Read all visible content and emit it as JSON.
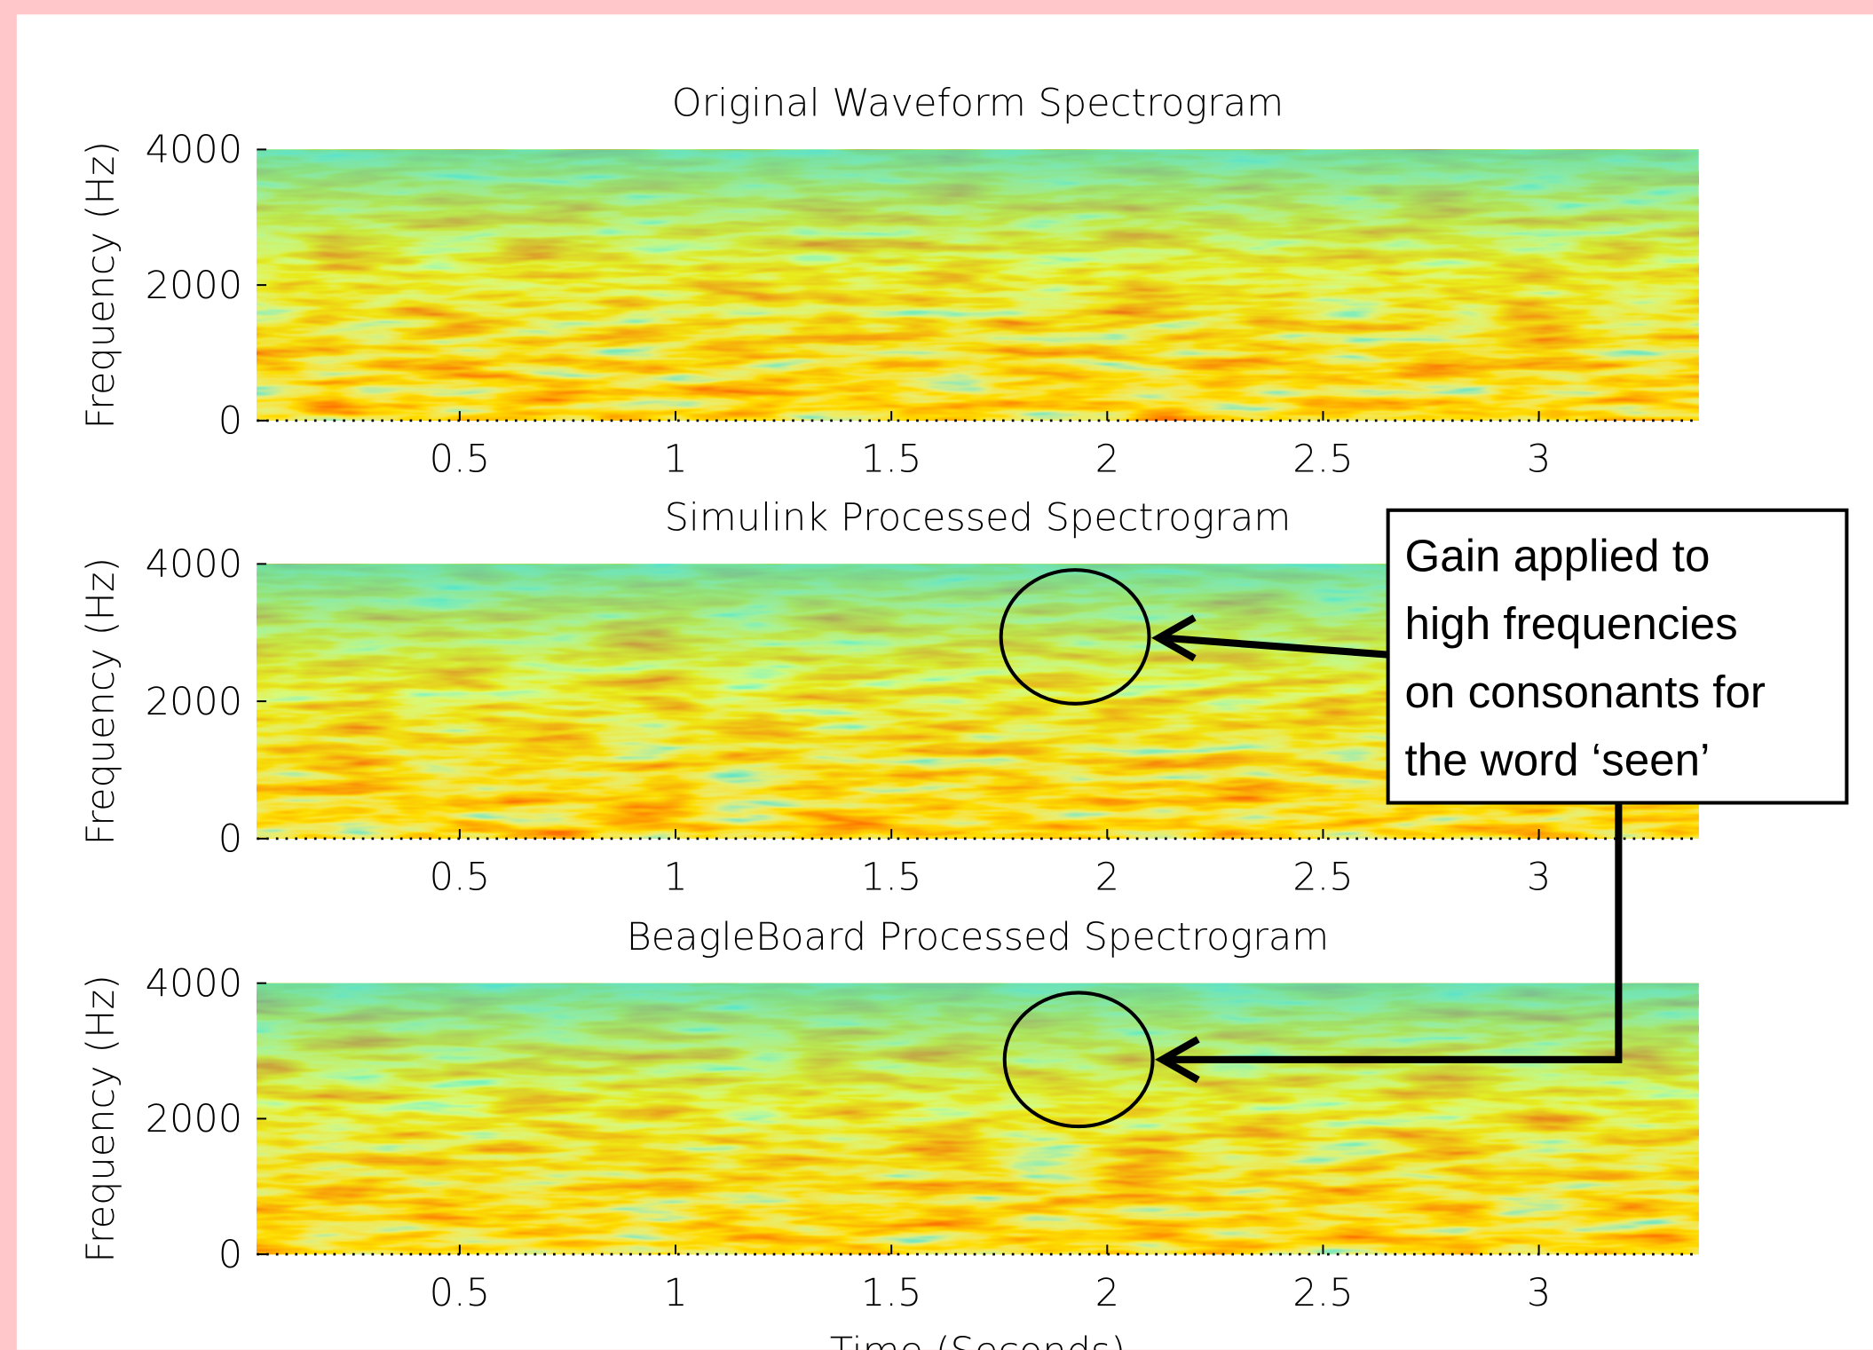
{
  "chart_data": [
    {
      "type": "spectrogram",
      "title": "Original Waveform Spectrogram",
      "ylabel": "Frequency (Hz)",
      "xlim": [
        0.03,
        3.37
      ],
      "ylim": [
        0,
        4000
      ],
      "xticks": [
        0.5,
        1,
        1.5,
        2,
        2.5,
        3
      ],
      "yticks": [
        0,
        2000,
        4000
      ],
      "grid": false
    },
    {
      "type": "spectrogram",
      "title": "Simulink Processed Spectrogram",
      "ylabel": "Frequency (Hz)",
      "xlim": [
        0.03,
        3.37
      ],
      "ylim": [
        0,
        4000
      ],
      "xticks": [
        0.5,
        1,
        1.5,
        2,
        2.5,
        3
      ],
      "yticks": [
        0,
        2000,
        4000
      ],
      "grid": false
    },
    {
      "type": "spectrogram",
      "title": "BeagleBoard Processed Spectrogram",
      "ylabel": "Frequency (Hz)",
      "xlabel": "Time (Seconds)",
      "xlim": [
        0.03,
        3.37
      ],
      "ylim": [
        0,
        4000
      ],
      "xticks": [
        0.5,
        1,
        1.5,
        2,
        2.5,
        3
      ],
      "yticks": [
        0,
        2000,
        4000
      ],
      "grid": false
    }
  ],
  "annotation": {
    "lines": [
      "Gain applied to",
      "high frequencies",
      "on consonants for",
      "the word ‘seen’"
    ]
  }
}
